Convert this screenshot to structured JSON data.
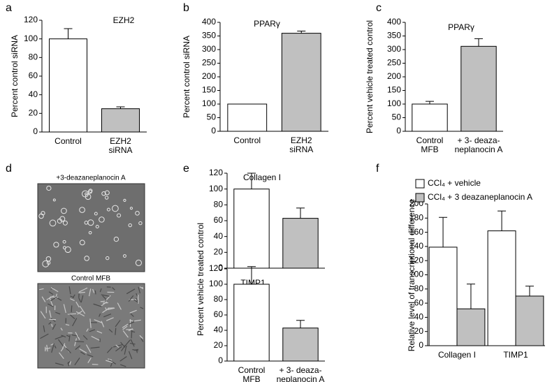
{
  "chart_data": [
    {
      "type": "bar",
      "panel": "a",
      "title": "EZH2",
      "ylabel": "Percent  control siRNA",
      "categories": [
        [
          "Control"
        ],
        [
          "EZH2",
          "siRNA"
        ]
      ],
      "series": [
        {
          "color": [
            "#ffffff",
            "#c0c0c0"
          ],
          "values": [
            100,
            25
          ],
          "errors": [
            11,
            2
          ]
        }
      ],
      "ylim": [
        0,
        120
      ],
      "yticks": [
        0,
        20,
        40,
        60,
        80,
        100,
        120
      ]
    },
    {
      "type": "bar",
      "panel": "b",
      "title": "PPARγ",
      "ylabel": "Percent  control siRNA",
      "categories": [
        [
          "Control"
        ],
        [
          "EZH2",
          "siRNA"
        ]
      ],
      "series": [
        {
          "color": [
            "#ffffff",
            "#c0c0c0"
          ],
          "values": [
            100,
            360
          ],
          "errors": [
            0,
            8
          ]
        }
      ],
      "ylim": [
        0,
        400
      ],
      "yticks": [
        0,
        50,
        100,
        150,
        200,
        250,
        300,
        350,
        400
      ]
    },
    {
      "type": "bar",
      "panel": "c",
      "title": "PPARγ",
      "ylabel": "Percent  vehicle treated control",
      "categories": [
        [
          "Control",
          "MFB"
        ],
        [
          "+ 3- deaza-",
          "neplanocin A"
        ]
      ],
      "series": [
        {
          "color": [
            "#ffffff",
            "#c0c0c0"
          ],
          "values": [
            100,
            312
          ],
          "errors": [
            10,
            28
          ]
        }
      ],
      "ylim": [
        0,
        400
      ],
      "yticks": [
        0,
        50,
        100,
        150,
        200,
        250,
        300,
        350,
        400
      ]
    },
    {
      "type": "bar",
      "panel": "e",
      "title": "Collagen I",
      "ylabel": "Percent  vehicle treated control",
      "categories": [
        null,
        null
      ],
      "series": [
        {
          "color": [
            "#ffffff",
            "#c0c0c0"
          ],
          "values": [
            100,
            63
          ],
          "errors": [
            20,
            13
          ]
        }
      ],
      "ylim": [
        0,
        120
      ],
      "yticks": [
        0,
        20,
        40,
        60,
        80,
        100,
        120
      ]
    },
    {
      "type": "bar",
      "title": "TIMP1",
      "categories": [
        [
          "Control",
          "MFB"
        ],
        [
          "+ 3- deaza-",
          "neplanocin A"
        ]
      ],
      "series": [
        {
          "color": [
            "#ffffff",
            "#c0c0c0"
          ],
          "values": [
            100,
            43
          ],
          "errors": [
            23,
            10
          ]
        }
      ],
      "ylim": [
        0,
        120
      ],
      "yticks": [
        0,
        20,
        40,
        60,
        80,
        100,
        120
      ]
    },
    {
      "type": "bar",
      "panel": "f",
      "ylabel": "Relative level of transcriptional difference",
      "categories": [
        [
          "Collagen I"
        ],
        [
          "TIMP1"
        ]
      ],
      "series": [
        {
          "name": "CCl₄ + vehicle",
          "color": "#ffffff",
          "values": [
            139,
            162
          ],
          "errors": [
            42,
            28
          ]
        },
        {
          "name": "CCl₄ + 3 deazaneplanocin A",
          "color": "#c0c0c0",
          "values": [
            52,
            70
          ],
          "errors": [
            35,
            14
          ]
        }
      ],
      "ylim": [
        0,
        200
      ],
      "yticks": [
        0,
        20,
        40,
        60,
        80,
        100,
        120,
        140,
        160,
        180,
        200
      ]
    }
  ],
  "image_panel": {
    "panel": "d",
    "captions": [
      "+3-deazaneplanocin A",
      "Control MFB"
    ]
  }
}
